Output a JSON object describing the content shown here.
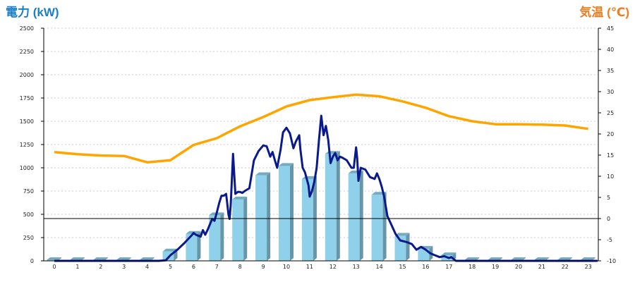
{
  "chart_data": {
    "type": "bar",
    "power_axis_label": "電力 (kW)",
    "temp_axis_label": "気温 (℃)",
    "x": [
      0,
      1,
      2,
      3,
      4,
      5,
      6,
      7,
      8,
      9,
      10,
      11,
      12,
      13,
      14,
      15,
      16,
      17,
      18,
      19,
      20,
      21,
      22,
      23
    ],
    "y_left_ticks": [
      0,
      250,
      500,
      750,
      1000,
      1250,
      1500,
      1750,
      2000,
      2250,
      2500
    ],
    "y_right_ticks": [
      -10,
      -5,
      0,
      5,
      10,
      15,
      20,
      25,
      30,
      35,
      40,
      45
    ],
    "ylim_left": [
      0,
      2500
    ],
    "ylim_right": [
      -10,
      45
    ],
    "grid": true,
    "colors": {
      "power_title": "#1a7ec8",
      "temp_title": "#f07c1e",
      "bars": "#8fd0ea",
      "power_line": "#0a1a8c",
      "temperature_line": "#ffa500"
    },
    "series": [
      {
        "kind": "bar",
        "axis": "left",
        "values": [
          8,
          8,
          8,
          8,
          8,
          100,
          290,
          490,
          660,
          920,
          1020,
          880,
          1150,
          940,
          710,
          270,
          130,
          60,
          8,
          8,
          8,
          8,
          8,
          8
        ]
      },
      {
        "kind": "line",
        "axis": "left",
        "points": [
          [
            0,
            0
          ],
          [
            4.5,
            0
          ],
          [
            4.8,
            5
          ],
          [
            5.0,
            60
          ],
          [
            5.3,
            120
          ],
          [
            5.6,
            190
          ],
          [
            5.9,
            270
          ],
          [
            6.0,
            300
          ],
          [
            6.1,
            280
          ],
          [
            6.3,
            260
          ],
          [
            6.4,
            330
          ],
          [
            6.5,
            280
          ],
          [
            6.6,
            330
          ],
          [
            6.7,
            390
          ],
          [
            6.8,
            450
          ],
          [
            6.9,
            430
          ],
          [
            7.0,
            520
          ],
          [
            7.1,
            620
          ],
          [
            7.2,
            700
          ],
          [
            7.3,
            700
          ],
          [
            7.4,
            720
          ],
          [
            7.5,
            500
          ],
          [
            7.55,
            450
          ],
          [
            7.6,
            600
          ],
          [
            7.7,
            1150
          ],
          [
            7.8,
            720
          ],
          [
            7.9,
            740
          ],
          [
            8.0,
            740
          ],
          [
            8.1,
            730
          ],
          [
            8.2,
            750
          ],
          [
            8.4,
            780
          ],
          [
            8.6,
            1080
          ],
          [
            8.8,
            1180
          ],
          [
            9.0,
            1240
          ],
          [
            9.15,
            1230
          ],
          [
            9.3,
            1120
          ],
          [
            9.4,
            1170
          ],
          [
            9.5,
            1080
          ],
          [
            9.6,
            1000
          ],
          [
            9.75,
            1200
          ],
          [
            9.85,
            1380
          ],
          [
            10.0,
            1430
          ],
          [
            10.15,
            1370
          ],
          [
            10.3,
            1210
          ],
          [
            10.4,
            1280
          ],
          [
            10.55,
            1350
          ],
          [
            10.6,
            1200
          ],
          [
            10.7,
            1000
          ],
          [
            10.8,
            950
          ],
          [
            10.95,
            810
          ],
          [
            11.0,
            690
          ],
          [
            11.1,
            750
          ],
          [
            11.2,
            850
          ],
          [
            11.3,
            1000
          ],
          [
            11.4,
            1300
          ],
          [
            11.5,
            1560
          ],
          [
            11.6,
            1350
          ],
          [
            11.7,
            1450
          ],
          [
            11.8,
            1300
          ],
          [
            11.9,
            1050
          ],
          [
            12.0,
            1120
          ],
          [
            12.1,
            1160
          ],
          [
            12.2,
            1080
          ],
          [
            12.3,
            1120
          ],
          [
            12.4,
            1110
          ],
          [
            12.6,
            1080
          ],
          [
            12.8,
            1000
          ],
          [
            12.9,
            1000
          ],
          [
            13.0,
            1220
          ],
          [
            13.05,
            1100
          ],
          [
            13.1,
            860
          ],
          [
            13.2,
            1000
          ],
          [
            13.4,
            980
          ],
          [
            13.6,
            900
          ],
          [
            13.8,
            880
          ],
          [
            13.9,
            940
          ],
          [
            14.0,
            880
          ],
          [
            14.1,
            800
          ],
          [
            14.2,
            700
          ],
          [
            14.35,
            480
          ],
          [
            14.5,
            400
          ],
          [
            14.7,
            290
          ],
          [
            14.9,
            220
          ],
          [
            15.2,
            200
          ],
          [
            15.4,
            180
          ],
          [
            15.6,
            120
          ],
          [
            15.8,
            150
          ],
          [
            16.0,
            120
          ],
          [
            16.2,
            80
          ],
          [
            16.4,
            60
          ],
          [
            16.6,
            40
          ],
          [
            16.8,
            50
          ],
          [
            17.0,
            30
          ],
          [
            17.1,
            40
          ],
          [
            17.3,
            0
          ],
          [
            23.4,
            0
          ]
        ]
      },
      {
        "kind": "line",
        "axis": "right",
        "values": [
          15.7,
          15.2,
          14.9,
          14.8,
          13.3,
          13.8,
          17.4,
          19.0,
          21.8,
          24.0,
          26.5,
          28.0,
          28.7,
          29.3,
          28.9,
          27.7,
          26.2,
          24.2,
          23.0,
          22.3,
          22.3,
          22.2,
          22.0,
          21.2
        ]
      }
    ]
  }
}
